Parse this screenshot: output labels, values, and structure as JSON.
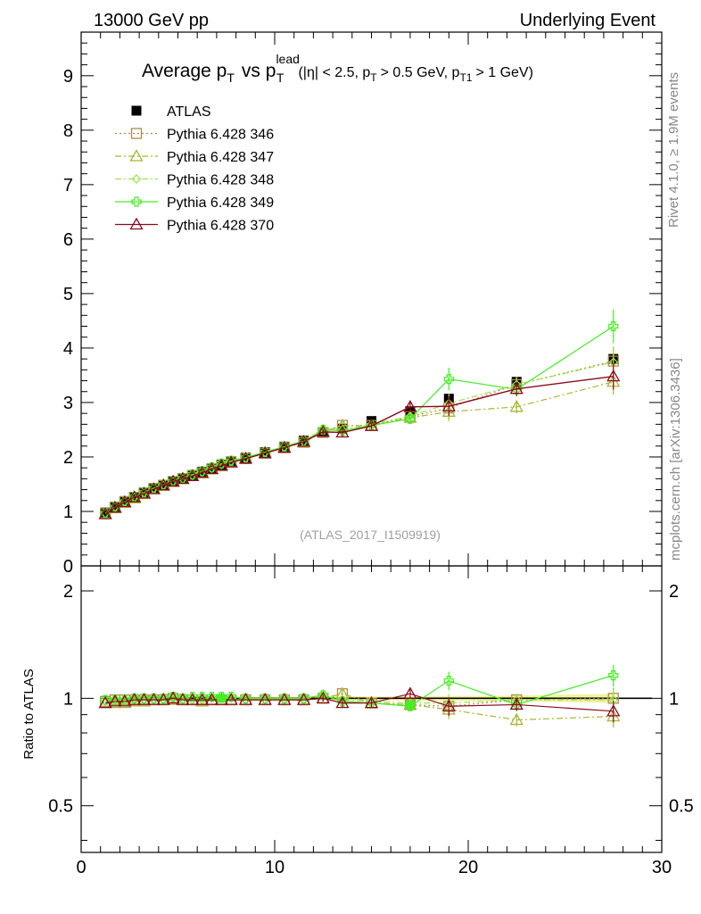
{
  "header": {
    "left": "13000 GeV pp",
    "right": "Underlying Event"
  },
  "side_labels": {
    "rivet": "Rivet 4.1.0, ≥ 1.9M events",
    "mcplots": "mcplots.cern.ch [arXiv:1306.3436]"
  },
  "colors": {
    "atlas": "#000000",
    "s346": "#b08a50",
    "s347": "#a8b832",
    "s348": "#9ee54a",
    "s349": "#44ee22",
    "s370": "#8b0a1e",
    "band": "#f2f2a0"
  },
  "chart_data": [
    {
      "type": "line",
      "title": "Average p_T vs p_T^lead (|η| < 2.5, p_T > 0.5 GeV, p_T1 > 1 GeV)",
      "title_parts": {
        "main": "Average p",
        "sub_T": "T",
        "vs": "vs p",
        "sup_lead": "lead",
        "cond_open": "(|η| < 2.5, p",
        "cond_mid": "> 0.5 GeV, p",
        "sub_T1": "T1",
        "cond_close": "> 1 GeV)"
      },
      "analysis_label": "(ATLAS_2017_I1509919)",
      "xlim": [
        0,
        30
      ],
      "ylim": [
        0,
        9.8
      ],
      "x_ticks": [
        0,
        10,
        20,
        30
      ],
      "y_ticks": [
        0,
        1,
        2,
        3,
        4,
        5,
        6,
        7,
        8,
        9
      ],
      "x": [
        1.25,
        1.75,
        2.25,
        2.75,
        3.25,
        3.75,
        4.25,
        4.75,
        5.25,
        5.75,
        6.25,
        6.75,
        7.25,
        7.75,
        8.5,
        9.5,
        10.5,
        11.5,
        12.5,
        13.5,
        15,
        17,
        19,
        22.5,
        27.5
      ],
      "series": [
        {
          "key": "atlas",
          "name": "ATLAS",
          "marker": "square-filled",
          "style": "none",
          "values": [
            0.98,
            1.09,
            1.19,
            1.27,
            1.35,
            1.43,
            1.49,
            1.55,
            1.61,
            1.67,
            1.73,
            1.79,
            1.86,
            1.92,
            1.99,
            2.09,
            2.19,
            2.3,
            2.45,
            2.52,
            2.66,
            2.84,
            3.07,
            3.38,
            3.8
          ]
        },
        {
          "key": "s346",
          "name": "Pythia 6.428 346",
          "marker": "square-open",
          "style": "dotted",
          "values": [
            0.96,
            1.08,
            1.18,
            1.26,
            1.34,
            1.42,
            1.48,
            1.55,
            1.6,
            1.66,
            1.71,
            1.78,
            1.84,
            1.91,
            1.97,
            2.07,
            2.17,
            2.27,
            2.45,
            2.58,
            2.58,
            2.74,
            2.9,
            3.33,
            3.76
          ]
        },
        {
          "key": "s347",
          "name": "Pythia 6.428 347",
          "marker": "triangle-open",
          "style": "dashdot",
          "values": [
            0.95,
            1.06,
            1.16,
            1.24,
            1.32,
            1.41,
            1.47,
            1.54,
            1.59,
            1.65,
            1.7,
            1.77,
            1.84,
            1.9,
            1.97,
            2.07,
            2.17,
            2.27,
            2.46,
            2.58,
            2.57,
            2.72,
            2.83,
            2.92,
            3.38
          ]
        },
        {
          "key": "s348",
          "name": "Pythia 6.428 348",
          "marker": "diamond-open",
          "style": "dashdot",
          "values": [
            0.96,
            1.08,
            1.18,
            1.26,
            1.34,
            1.42,
            1.48,
            1.55,
            1.6,
            1.66,
            1.72,
            1.79,
            1.86,
            1.92,
            1.98,
            2.08,
            2.18,
            2.28,
            2.52,
            2.5,
            2.6,
            2.75,
            2.98,
            3.33,
            3.74
          ]
        },
        {
          "key": "s349",
          "name": "Pythia 6.428 349",
          "marker": "cross-open",
          "style": "solid",
          "values": [
            0.97,
            1.08,
            1.18,
            1.27,
            1.35,
            1.43,
            1.49,
            1.56,
            1.61,
            1.68,
            1.74,
            1.81,
            1.88,
            1.93,
            1.99,
            2.09,
            2.19,
            2.29,
            2.5,
            2.48,
            2.58,
            2.7,
            3.43,
            3.24,
            4.4
          ]
        },
        {
          "key": "s370",
          "name": "Pythia 6.428 370",
          "marker": "triangle-open",
          "style": "solid",
          "values": [
            0.95,
            1.07,
            1.17,
            1.26,
            1.33,
            1.41,
            1.48,
            1.55,
            1.6,
            1.65,
            1.71,
            1.78,
            1.84,
            1.9,
            1.97,
            2.07,
            2.17,
            2.28,
            2.46,
            2.45,
            2.57,
            2.92,
            2.93,
            3.25,
            3.48
          ]
        }
      ],
      "legend_position": "top-left"
    },
    {
      "type": "line",
      "ylabel": "Ratio to ATLAS",
      "scale": "log",
      "xlim": [
        0,
        30
      ],
      "ylim": [
        0.37,
        2.35
      ],
      "x_ticks": [
        0,
        10,
        20,
        30
      ],
      "y_ticks": [
        0.5,
        1,
        2
      ],
      "reference": 1,
      "x": [
        1.25,
        1.75,
        2.25,
        2.75,
        3.25,
        3.75,
        4.25,
        4.75,
        5.25,
        5.75,
        6.25,
        6.75,
        7.25,
        7.75,
        8.5,
        9.5,
        10.5,
        11.5,
        12.5,
        13.5,
        15,
        17,
        19,
        22.5,
        27.5
      ],
      "series": [
        {
          "key": "s346",
          "values": [
            0.98,
            0.99,
            0.99,
            0.99,
            0.99,
            0.99,
            0.99,
            1.0,
            0.99,
            0.99,
            0.99,
            0.99,
            0.99,
            0.99,
            0.99,
            0.99,
            0.99,
            0.99,
            1.0,
            1.03,
            0.97,
            0.96,
            0.95,
            0.99,
            1.0
          ]
        },
        {
          "key": "s347",
          "values": [
            0.97,
            0.97,
            0.97,
            0.98,
            0.98,
            0.99,
            0.99,
            0.99,
            0.99,
            0.99,
            0.98,
            0.99,
            0.99,
            0.99,
            0.99,
            0.99,
            0.99,
            0.99,
            1.0,
            1.03,
            0.97,
            0.96,
            0.93,
            0.87,
            0.89
          ]
        },
        {
          "key": "s348",
          "values": [
            0.98,
            0.99,
            0.99,
            0.99,
            0.99,
            0.99,
            0.99,
            1.0,
            0.99,
            0.99,
            0.99,
            1.0,
            1.0,
            1.0,
            0.99,
            0.99,
            0.99,
            0.99,
            1.03,
            0.99,
            0.98,
            0.97,
            0.97,
            0.99,
            0.99
          ]
        },
        {
          "key": "s349",
          "values": [
            0.99,
            0.99,
            0.99,
            1.0,
            1.0,
            1.0,
            1.0,
            1.01,
            1.0,
            1.01,
            1.01,
            1.01,
            1.01,
            1.01,
            1.0,
            1.0,
            1.0,
            1.0,
            1.02,
            0.98,
            0.97,
            0.95,
            1.12,
            0.96,
            1.16
          ]
        },
        {
          "key": "s370",
          "values": [
            0.97,
            0.98,
            0.98,
            0.99,
            0.99,
            0.99,
            0.99,
            1.0,
            0.99,
            0.99,
            0.99,
            0.99,
            0.99,
            0.99,
            0.99,
            0.99,
            0.99,
            0.99,
            1.0,
            0.97,
            0.97,
            1.03,
            0.95,
            0.96,
            0.92
          ]
        }
      ]
    }
  ]
}
